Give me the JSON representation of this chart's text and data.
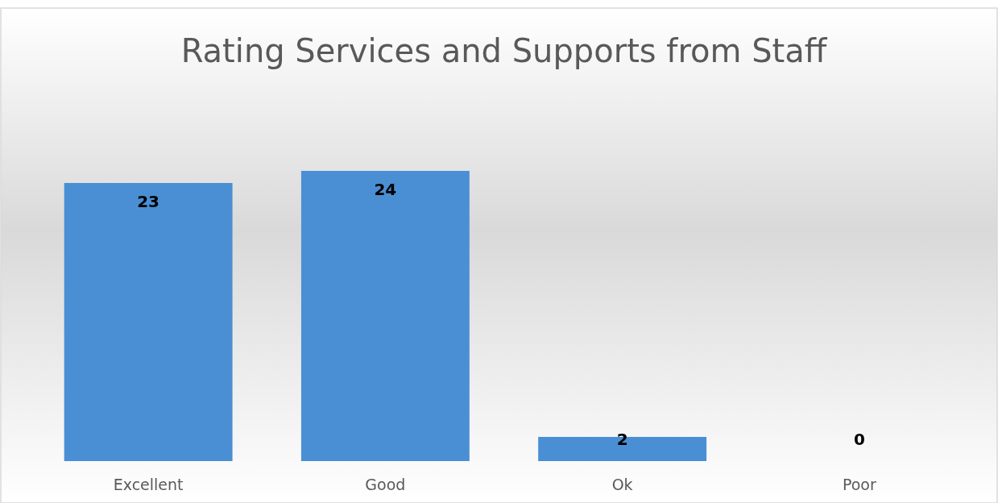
{
  "chart_data": {
    "type": "bar",
    "title": "Rating Services and Supports from Staff",
    "categories": [
      "Excellent",
      "Good",
      "Ok",
      "Poor"
    ],
    "values": [
      23,
      24,
      2,
      0
    ],
    "color": "#4a8fd4",
    "data_labels": true
  }
}
